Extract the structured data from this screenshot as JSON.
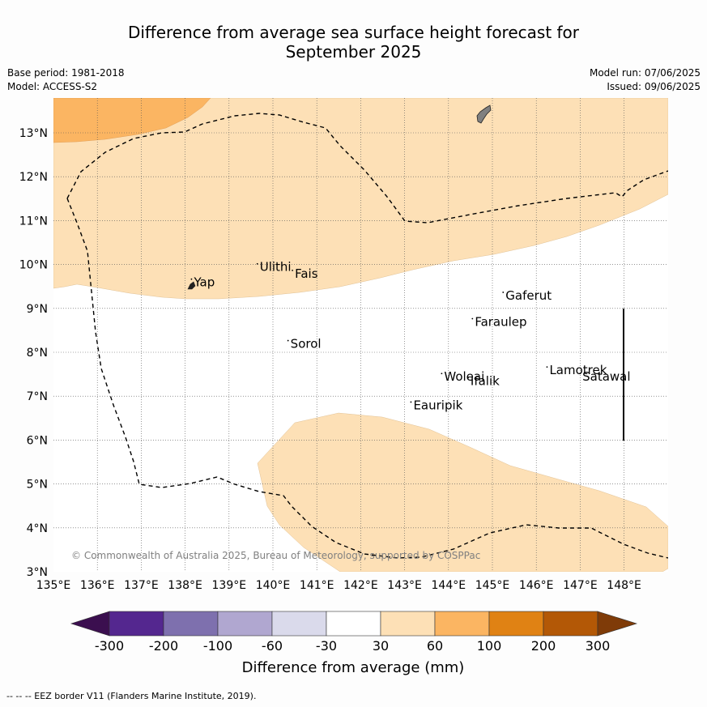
{
  "header": {
    "title_line1": "Difference from average sea surface height forecast for",
    "title_line2": "September 2025",
    "base_period": "Base period: 1981-2018",
    "model": "Model: ACCESS-S2",
    "model_run": "Model run: 07/06/2025",
    "issued": "Issued: 09/06/2025"
  },
  "map": {
    "lon_range": [
      135,
      149
    ],
    "lat_range": [
      3,
      13.8
    ],
    "lon_ticks": [
      "135°E",
      "136°E",
      "137°E",
      "138°E",
      "139°E",
      "140°E",
      "141°E",
      "142°E",
      "143°E",
      "144°E",
      "145°E",
      "146°E",
      "147°E",
      "148°E"
    ],
    "lat_ticks": [
      "3°N",
      "4°N",
      "5°N",
      "6°N",
      "7°N",
      "8°N",
      "9°N",
      "10°N",
      "11°N",
      "12°N",
      "13°N"
    ],
    "places": [
      {
        "name": "Yap",
        "lon": 138.2,
        "lat": 9.5
      },
      {
        "name": "Ulithi",
        "lon": 139.7,
        "lat": 9.85
      },
      {
        "name": "Fais",
        "lon": 140.5,
        "lat": 9.7
      },
      {
        "name": "Sorol",
        "lon": 140.4,
        "lat": 8.1
      },
      {
        "name": "Gaferut",
        "lon": 145.3,
        "lat": 9.2
      },
      {
        "name": "Faraulep",
        "lon": 144.6,
        "lat": 8.6
      },
      {
        "name": "Woleai",
        "lon": 143.9,
        "lat": 7.35
      },
      {
        "name": "Ifalik",
        "lon": 144.5,
        "lat": 7.25
      },
      {
        "name": "Lamotrek",
        "lon": 146.3,
        "lat": 7.5
      },
      {
        "name": "Satawal",
        "lon": 147.05,
        "lat": 7.35
      },
      {
        "name": "Eauripik",
        "lon": 143.2,
        "lat": 6.7
      }
    ],
    "copyright": "© Commonwealth of Australia 2025, Bureau of Meteorology, supported by COSPPac",
    "colors": {
      "light_orange": "#fde0b6",
      "mid_orange": "#fbb562",
      "land": "#808080"
    }
  },
  "colorbar": {
    "title": "Difference from average (mm)",
    "labels": [
      "-300",
      "-200",
      "-100",
      "-60",
      "-30",
      "30",
      "60",
      "100",
      "200",
      "300"
    ],
    "colors": [
      "#3b0f4f",
      "#54278f",
      "#7e70ae",
      "#b0a7d0",
      "#dadaeb",
      "#ffffff",
      "#fde0b6",
      "#fbb562",
      "#e08214",
      "#b35806",
      "#7f3b08"
    ]
  },
  "footnote": "--  --  -- EEZ border V11 (Flanders Marine Institute, 2019)."
}
